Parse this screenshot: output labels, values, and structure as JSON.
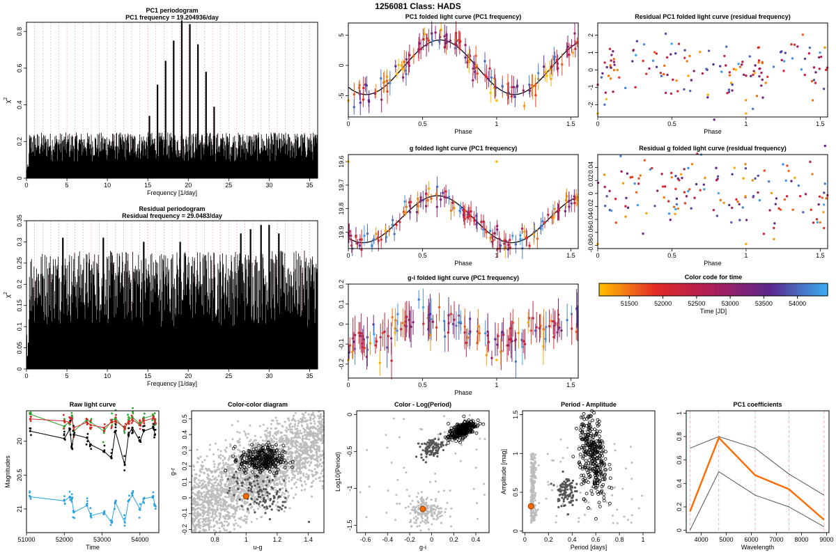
{
  "main_title": "1256081     Class: HADS",
  "colors": {
    "point_dark": "#000000",
    "point_grey": "#bdbdbd",
    "point_midgrey": "#555555",
    "highlight": "#ff6a00",
    "band_g": "#2ca02c",
    "band_r": "#d62728",
    "band_i": "#000000",
    "band_u": "#29a3e0",
    "coef_line": "#ff6a00",
    "grid_pink": "#f4a6b6"
  },
  "chart_data": [
    {
      "id": "pc1_periodogram",
      "type": "line",
      "title": "PC1 periodogram",
      "subtitle": "PC1 frequency = 19.204936/day",
      "xlabel": "Frequency [1/day]",
      "ylabel": "χ²",
      "xlim": [
        0,
        36
      ],
      "ylim": [
        0,
        0.85
      ],
      "xticks": [
        0,
        5,
        10,
        15,
        20,
        25,
        30,
        35
      ],
      "yticks": [
        0,
        0.2,
        0.4,
        0.6,
        0.8
      ],
      "noise_level": 0.25,
      "peaks": [
        {
          "x": 15.2,
          "y": 0.34
        },
        {
          "x": 16.2,
          "y": 0.51
        },
        {
          "x": 17.2,
          "y": 0.64
        },
        {
          "x": 18.2,
          "y": 0.75
        },
        {
          "x": 19.2,
          "y": 0.86
        },
        {
          "x": 20.2,
          "y": 0.84
        },
        {
          "x": 21.2,
          "y": 0.73
        },
        {
          "x": 22.2,
          "y": 0.58
        },
        {
          "x": 23.2,
          "y": 0.39
        }
      ]
    },
    {
      "id": "residual_periodogram",
      "type": "line",
      "title": "Residual periodogram",
      "subtitle": "Residual frequency = 29.0483/day",
      "xlabel": "Frequency [1/day]",
      "ylabel": "χ²",
      "xlim": [
        0,
        36
      ],
      "ylim": [
        0,
        0.35
      ],
      "xticks": [
        0,
        5,
        10,
        15,
        20,
        25,
        30,
        35
      ],
      "yticks": [
        0,
        0.05,
        0.1,
        0.15,
        0.2,
        0.25,
        0.3,
        0.35
      ],
      "noise_level": 0.28,
      "peaks": [
        {
          "x": 4.5,
          "y": 0.31
        },
        {
          "x": 9.5,
          "y": 0.31
        },
        {
          "x": 14.5,
          "y": 0.3
        },
        {
          "x": 19.0,
          "y": 0.3
        },
        {
          "x": 26.5,
          "y": 0.32
        },
        {
          "x": 27.7,
          "y": 0.33
        },
        {
          "x": 29.0,
          "y": 0.34
        },
        {
          "x": 30.0,
          "y": 0.34
        },
        {
          "x": 31.2,
          "y": 0.32
        }
      ]
    },
    {
      "id": "pc1_folded",
      "type": "scatter",
      "title": "PC1 folded light curve (PC1 frequency)",
      "xlabel": "Phase",
      "ylabel": "",
      "xlim": [
        0,
        1.55
      ],
      "ylim": [
        -8.5,
        7
      ],
      "xticks": [
        0,
        0.5,
        1,
        1.5
      ],
      "yticks": [
        -5,
        0,
        5
      ],
      "model": {
        "amplitude": 4.5,
        "offset": -0.3,
        "peak_phase": 0.62
      }
    },
    {
      "id": "residual_pc1_folded",
      "type": "scatter",
      "title": "Residual PC1 folded light curve (residual frequency)",
      "xlabel": "Phase",
      "ylabel": "",
      "xlim": [
        0,
        1.55
      ],
      "ylim": [
        -2.7,
        2.7
      ],
      "xticks": [
        0,
        0.5,
        1,
        1.5
      ],
      "yticks": [
        -2,
        -1,
        0,
        1,
        2
      ]
    },
    {
      "id": "g_folded",
      "type": "scatter",
      "title": "g folded light curve (PC1 frequency)",
      "xlabel": "Phase",
      "ylabel": "",
      "xlim": [
        0,
        1.55
      ],
      "ylim": [
        19.97,
        19.57
      ],
      "xticks": [
        0,
        0.5,
        1,
        1.5
      ],
      "yticks": [
        19.6,
        19.7,
        19.8,
        19.9
      ],
      "model": {
        "amplitude": 0.1,
        "offset": 19.845,
        "peak_phase": 0.1
      }
    },
    {
      "id": "residual_g_folded",
      "type": "scatter",
      "title": "Residual g folded light curve (residual frequency)",
      "xlabel": "Phase",
      "ylabel": "",
      "xlim": [
        0,
        1.55
      ],
      "ylim": [
        -0.085,
        0.06
      ],
      "xticks": [
        0,
        0.5,
        1,
        1.5
      ],
      "yticks": [
        -0.08,
        -0.06,
        -0.04,
        -0.02,
        0,
        0.02,
        0.04
      ]
    },
    {
      "id": "gi_folded",
      "type": "scatter",
      "title": "g-i folded light curve (PC1 frequency)",
      "xlabel": "Phase",
      "ylabel": "",
      "xlim": [
        0,
        1.55
      ],
      "ylim": [
        -0.27,
        0.2
      ],
      "xticks": [
        0,
        0.5,
        1,
        1.5
      ],
      "yticks": [
        -0.2,
        -0.1,
        0,
        0.1,
        0.2
      ]
    },
    {
      "id": "color_code",
      "type": "heatmap",
      "title": "Color code for time",
      "xlabel": "Time [JD]",
      "xlim": [
        51050,
        54450
      ],
      "xticks": [
        51500,
        52000,
        52500,
        53000,
        53500,
        54000
      ]
    },
    {
      "id": "raw_light_curve",
      "type": "line",
      "title": "Raw light curve",
      "xlabel": "Time",
      "ylabel": "Magnitudes",
      "xlim": [
        51000,
        54500
      ],
      "ylim": [
        21.35,
        19.55
      ],
      "xticks": [
        51000,
        52000,
        53000,
        54000
      ],
      "yticks": [
        20.0,
        20.5,
        21.0
      ],
      "series": [
        {
          "band": "g",
          "color": "#2ca02c",
          "x": [
            51100,
            52000,
            52150,
            52200,
            52250,
            52600,
            52700,
            53050,
            53250,
            53350,
            53600,
            53700,
            53800,
            54000,
            54100,
            54350,
            54400
          ],
          "y": [
            19.6,
            19.78,
            19.7,
            19.62,
            19.85,
            19.68,
            19.72,
            19.85,
            19.7,
            19.66,
            19.82,
            19.68,
            19.64,
            19.75,
            19.66,
            19.62,
            19.7
          ]
        },
        {
          "band": "r",
          "color": "#d62728",
          "x": [
            51100,
            52000,
            52150,
            52200,
            52250,
            52600,
            52700,
            53050,
            53250,
            53350,
            53600,
            53700,
            53800,
            54000,
            54100,
            54350,
            54400
          ],
          "y": [
            19.67,
            19.7,
            19.72,
            19.68,
            19.8,
            19.72,
            19.76,
            19.8,
            19.72,
            19.7,
            19.8,
            19.72,
            19.68,
            19.76,
            19.7,
            19.66,
            19.72
          ]
        },
        {
          "band": "i",
          "color": "#000000",
          "x": [
            51100,
            52000,
            52150,
            52200,
            52250,
            52600,
            52700,
            53050,
            53250,
            53350,
            53600,
            53700,
            53800,
            54000,
            54100,
            54350,
            54400
          ],
          "y": [
            19.85,
            19.96,
            19.82,
            20.1,
            19.9,
            19.95,
            20.05,
            20.15,
            20.25,
            19.85,
            20.35,
            19.9,
            19.8,
            20.0,
            19.85,
            19.8,
            19.9
          ]
        },
        {
          "band": "u",
          "color": "#29a3e0",
          "x": [
            51100,
            52000,
            52150,
            52200,
            52250,
            52600,
            52700,
            53050,
            53250,
            53350,
            53600,
            53700,
            53800,
            54000,
            54100,
            54350,
            54400
          ],
          "y": [
            20.82,
            20.88,
            20.82,
            20.85,
            21.05,
            20.95,
            21.1,
            21.05,
            21.2,
            20.9,
            21.2,
            20.88,
            20.8,
            21.0,
            20.85,
            20.82,
            20.95
          ]
        }
      ]
    },
    {
      "id": "color_color",
      "type": "scatter",
      "title": "Color-color diagram",
      "xlabel": "u-g",
      "ylabel": "g-r",
      "xlim": [
        0.65,
        1.5
      ],
      "ylim": [
        -0.22,
        0.55
      ],
      "xticks": [
        0.8,
        1.0,
        1.2,
        1.4
      ],
      "yticks": [
        -0.2,
        -0.1,
        0,
        0.1,
        0.2,
        0.3,
        0.4,
        0.5
      ],
      "target": {
        "x": 1.0,
        "y": 0.01
      }
    },
    {
      "id": "color_logperiod",
      "type": "scatter",
      "title": "Color - Log(Period)",
      "xlabel": "g-i",
      "ylabel": "Log10(Period)",
      "xlim": [
        -0.68,
        0.52
      ],
      "ylim": [
        -1.6,
        0.05
      ],
      "xticks": [
        -0.6,
        -0.4,
        -0.2,
        0,
        0.2,
        0.4
      ],
      "yticks": [
        -1.5,
        -1.0,
        -0.5,
        0
      ],
      "target": {
        "x": -0.08,
        "y": -1.28
      }
    },
    {
      "id": "period_amplitude",
      "type": "scatter",
      "title": "Period - Amplitude",
      "xlabel": "Period [days]",
      "ylabel": "Amplitude [mag]",
      "xlim": [
        -0.02,
        1.1
      ],
      "ylim": [
        -0.02,
        1.55
      ],
      "xticks": [
        0,
        0.2,
        0.4,
        0.6,
        0.8,
        1.0
      ],
      "yticks": [
        0,
        0.5,
        1.0,
        1.5
      ],
      "target": {
        "x": 0.052,
        "y": 0.32
      }
    },
    {
      "id": "pc1_coefficients",
      "type": "line",
      "title": "PC1 coefficients",
      "xlabel": "Wavelength",
      "ylabel": "",
      "xlim": [
        3400,
        9100
      ],
      "ylim": [
        -0.02,
        1.02
      ],
      "xticks": [
        4000,
        5000,
        6000,
        7000,
        8000,
        9000
      ],
      "yticks": [
        0,
        0.2,
        0.4,
        0.6,
        0.8,
        1.0
      ],
      "band_wavelengths": [
        3550,
        4700,
        6150,
        7500,
        8900
      ],
      "series": [
        {
          "name": "upper",
          "x": [
            3550,
            4700,
            6150,
            7500,
            8900
          ],
          "y": [
            0.7,
            0.8,
            0.7,
            0.48,
            0.3
          ],
          "color": "#555555"
        },
        {
          "name": "lower",
          "x": [
            3550,
            4700,
            6150,
            7500,
            8900
          ],
          "y": [
            0.0,
            0.5,
            0.3,
            0.2,
            0.03
          ],
          "color": "#555555"
        },
        {
          "name": "coefficient",
          "x": [
            3550,
            4700,
            6150,
            7500,
            8900
          ],
          "y": [
            0.16,
            0.79,
            0.47,
            0.35,
            0.09
          ],
          "color": "#ff6a00"
        }
      ]
    }
  ]
}
